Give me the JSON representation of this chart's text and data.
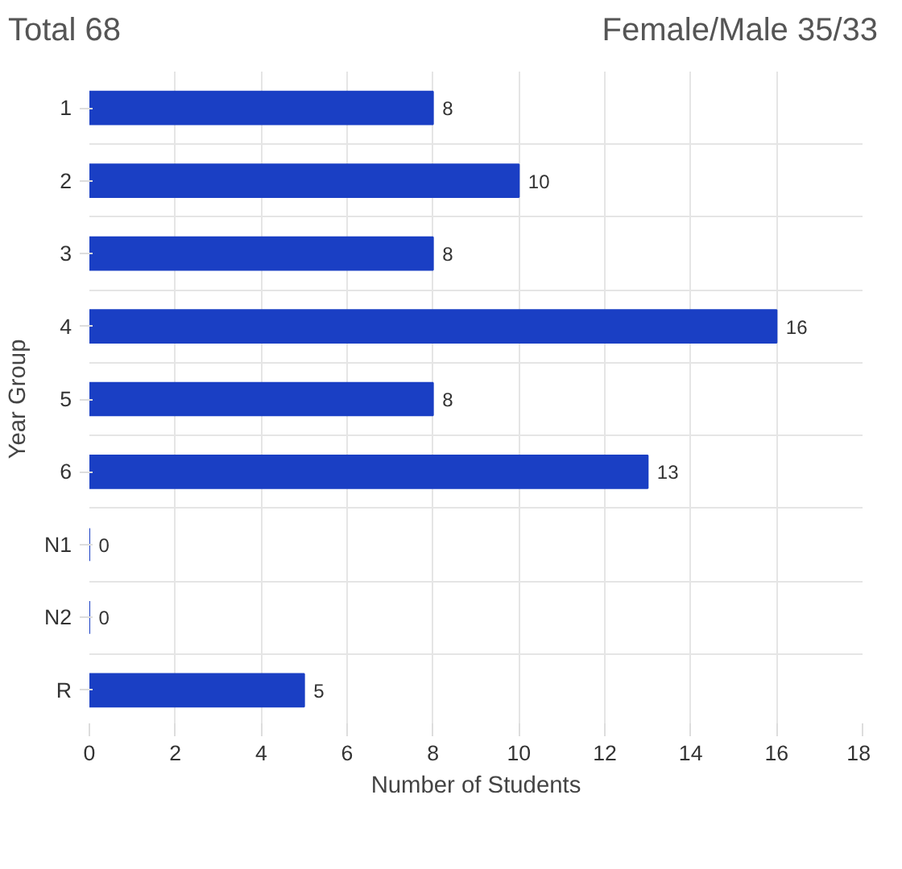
{
  "chart_data": {
    "type": "bar",
    "orientation": "horizontal",
    "ylabel": "Year Group",
    "xlabel": "Number of Students",
    "categories": [
      "1",
      "2",
      "3",
      "4",
      "5",
      "6",
      "N1",
      "N2",
      "R"
    ],
    "values": [
      8,
      10,
      8,
      16,
      8,
      13,
      0,
      0,
      5
    ],
    "color": "#1a3fc4",
    "xlim": [
      0,
      18
    ],
    "xticks": [
      0,
      2,
      4,
      6,
      8,
      10,
      12,
      14,
      16,
      18
    ],
    "grid": true,
    "data_labels": true,
    "annotations": [
      "Total 68",
      "Female/Male 35/33"
    ]
  }
}
